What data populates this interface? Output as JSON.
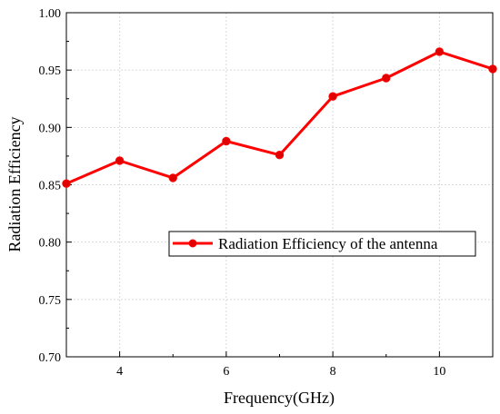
{
  "chart_data": {
    "type": "line",
    "title": "",
    "xlabel": "Frequency(GHz)",
    "ylabel": "Radiation Efficiency",
    "xlim": [
      3,
      11
    ],
    "ylim": [
      0.7,
      1.0
    ],
    "x_ticks": [
      4,
      6,
      8,
      10
    ],
    "y_ticks": [
      0.7,
      0.75,
      0.8,
      0.85,
      0.9,
      0.95,
      1.0
    ],
    "y_tick_labels": [
      "0.70",
      "0.75",
      "0.80",
      "0.85",
      "0.90",
      "0.95",
      "1.00"
    ],
    "grid": true,
    "legend_position": "center-right",
    "series": [
      {
        "name": "Radiation Efficiency of the antenna",
        "color": "#ff0000",
        "marker_color": "#e00000",
        "x": [
          3,
          4,
          5,
          6,
          7,
          8,
          9,
          10,
          11
        ],
        "y": [
          0.851,
          0.871,
          0.856,
          0.888,
          0.876,
          0.927,
          0.943,
          0.966,
          0.951
        ]
      }
    ]
  }
}
